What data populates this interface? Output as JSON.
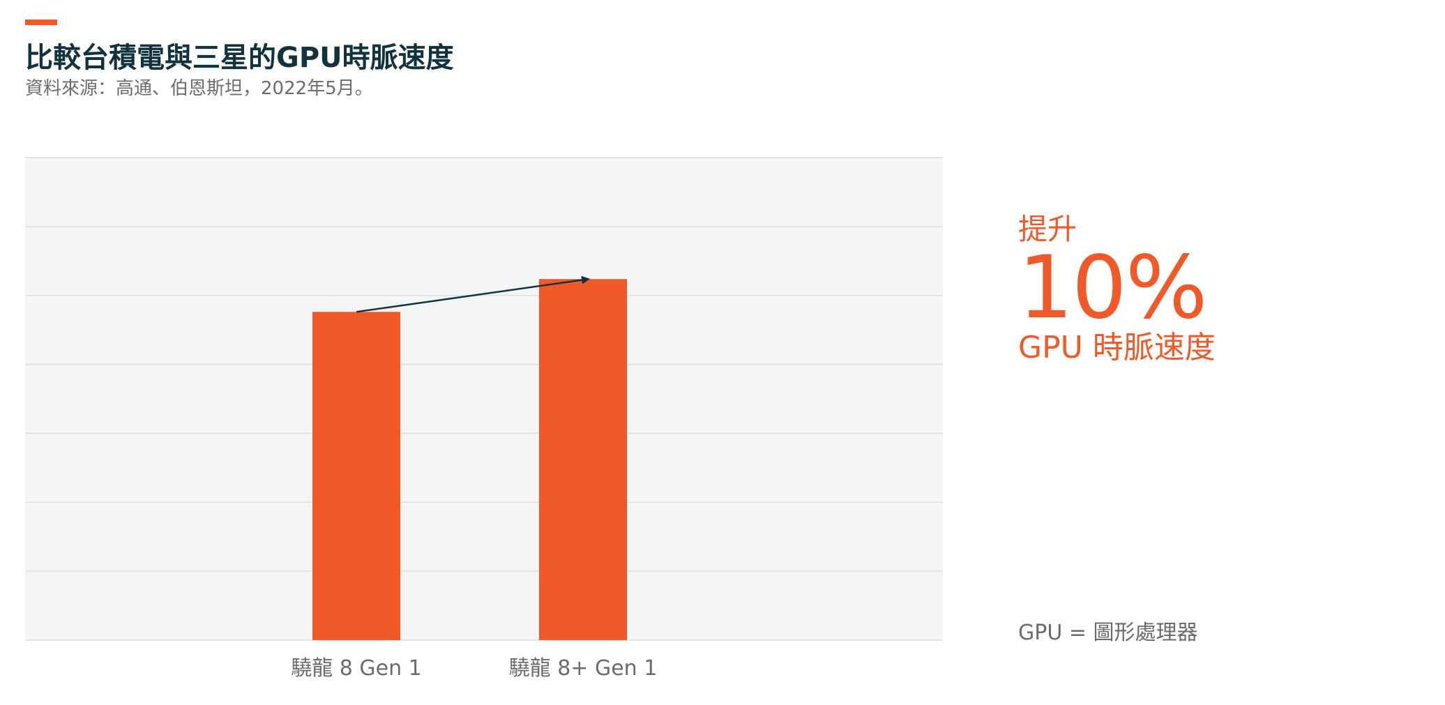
{
  "header": {
    "title": "比較台積電與三星的GPU時脈速度",
    "subtitle": "資料來源：高通、伯恩斯坦，2022年5月。"
  },
  "callout": {
    "prefix": "提升",
    "value": "10%",
    "metric": "GPU 時脈速度"
  },
  "footnote": "GPU = 圖形處理器",
  "colors": {
    "accent": "#f05a28",
    "title": "#12323e",
    "muted": "#6b6b6b",
    "plot_background": "#f4f5f7",
    "gridline": "#dedede",
    "arrow": "#12323e"
  },
  "chart_data": {
    "type": "bar",
    "categories": [
      "驍龍 8 Gen 1",
      "驍龍 8+ Gen 1"
    ],
    "values": [
      100,
      110
    ],
    "title": "",
    "xlabel": "",
    "ylabel": "",
    "ylim": [
      0,
      147
    ],
    "grid": true,
    "legend": "none",
    "annotation": "arrow from first bar top to second bar top"
  }
}
